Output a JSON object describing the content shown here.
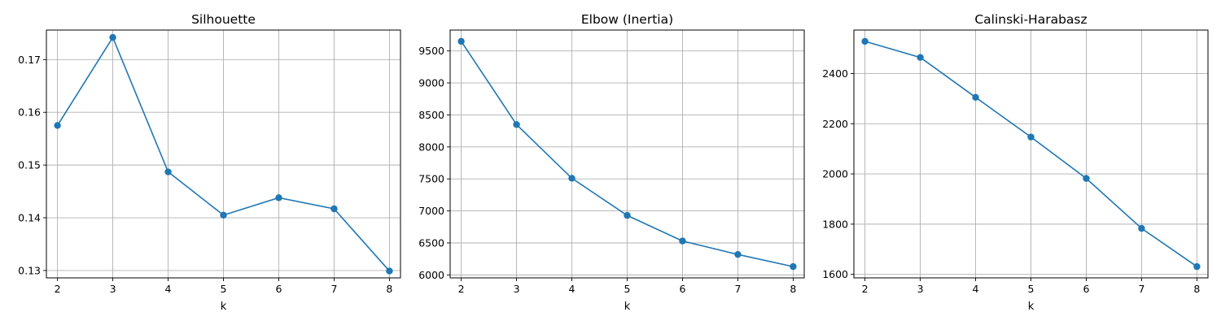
{
  "chart_data": [
    {
      "type": "line",
      "title": "Silhouette",
      "xlabel": "k",
      "ylabel": "",
      "x": [
        2,
        3,
        4,
        5,
        6,
        7,
        8
      ],
      "values": [
        0.1575,
        0.1742,
        0.1487,
        0.1405,
        0.1438,
        0.1417,
        0.1299
      ],
      "xticks": [
        2,
        3,
        4,
        5,
        6,
        7,
        8
      ],
      "yticks": [
        0.13,
        0.14,
        0.15,
        0.16,
        0.17
      ],
      "ytick_labels": [
        "0.13",
        "0.14",
        "0.15",
        "0.16",
        "0.17"
      ],
      "xlim": [
        1.8,
        8.2
      ],
      "ylim": [
        0.1286,
        0.1756
      ],
      "grid": true,
      "marker": "circle",
      "color": "#1f77b4"
    },
    {
      "type": "line",
      "title": "Elbow (Inertia)",
      "xlabel": "k",
      "ylabel": "",
      "x": [
        2,
        3,
        4,
        5,
        6,
        7,
        8
      ],
      "values": [
        9650,
        8350,
        7510,
        6930,
        6530,
        6320,
        6130
      ],
      "xticks": [
        2,
        3,
        4,
        5,
        6,
        7,
        8
      ],
      "yticks": [
        6000,
        6500,
        7000,
        7500,
        8000,
        8500,
        9000,
        9500
      ],
      "ytick_labels": [
        "6000",
        "6500",
        "7000",
        "7500",
        "8000",
        "8500",
        "9000",
        "9500"
      ],
      "xlim": [
        1.8,
        8.2
      ],
      "ylim": [
        5954,
        9826
      ],
      "grid": true,
      "marker": "circle",
      "color": "#1f77b4"
    },
    {
      "type": "line",
      "title": "Calinski-Harabasz",
      "xlabel": "k",
      "ylabel": "",
      "x": [
        2,
        3,
        4,
        5,
        6,
        7,
        8
      ],
      "values": [
        2528,
        2464,
        2305,
        2147,
        1982,
        1783,
        1631
      ],
      "xticks": [
        2,
        3,
        4,
        5,
        6,
        7,
        8
      ],
      "yticks": [
        1600,
        1800,
        2000,
        2200,
        2400
      ],
      "ytick_labels": [
        "1600",
        "1800",
        "2000",
        "2200",
        "2400"
      ],
      "xlim": [
        1.8,
        8.2
      ],
      "ylim": [
        1586,
        2573
      ],
      "grid": true,
      "marker": "circle",
      "color": "#1f77b4"
    }
  ]
}
